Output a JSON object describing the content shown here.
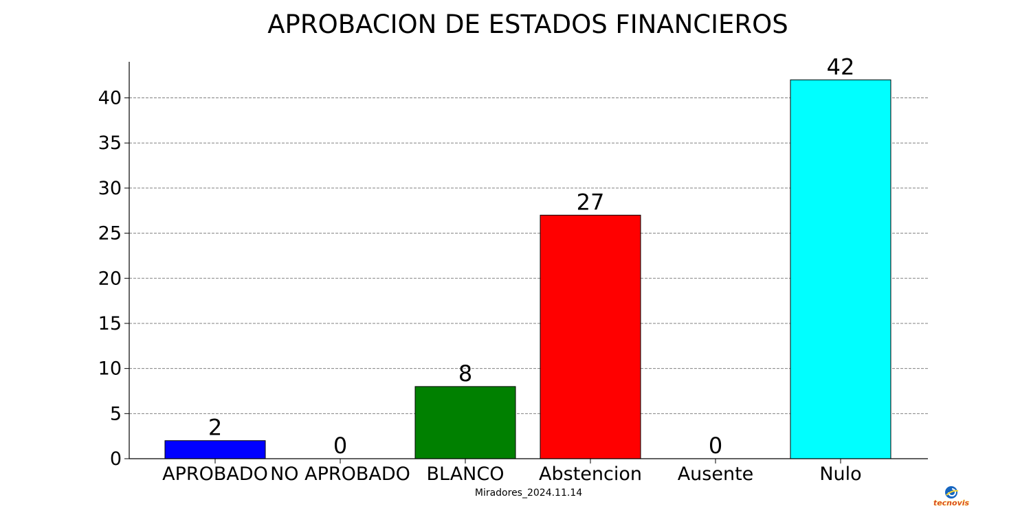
{
  "chart_data": {
    "type": "bar",
    "title": "APROBACION DE ESTADOS FINANCIEROS",
    "categories": [
      "APROBADO",
      "NO APROBADO",
      "BLANCO",
      "Abstencion",
      "Ausente",
      "Nulo"
    ],
    "values": [
      2,
      0,
      8,
      27,
      0,
      42
    ],
    "colors": [
      "#0000ff",
      "#0000ff",
      "#008000",
      "#ff0000",
      "#ff0000",
      "#00ffff"
    ],
    "xlabel": "",
    "ylabel": "",
    "ylim": [
      0,
      44
    ],
    "yticks": [
      0,
      5,
      10,
      15,
      20,
      25,
      30,
      35,
      40
    ],
    "grid": "horizontal-dashed",
    "data_labels": true,
    "footnote": "Miradores_2024.11.14"
  },
  "logo": {
    "text": "tecnovis",
    "icon": "tecnovis-globe-icon",
    "colors": [
      "#1565c0",
      "#d32f2f",
      "#fdd835"
    ]
  }
}
